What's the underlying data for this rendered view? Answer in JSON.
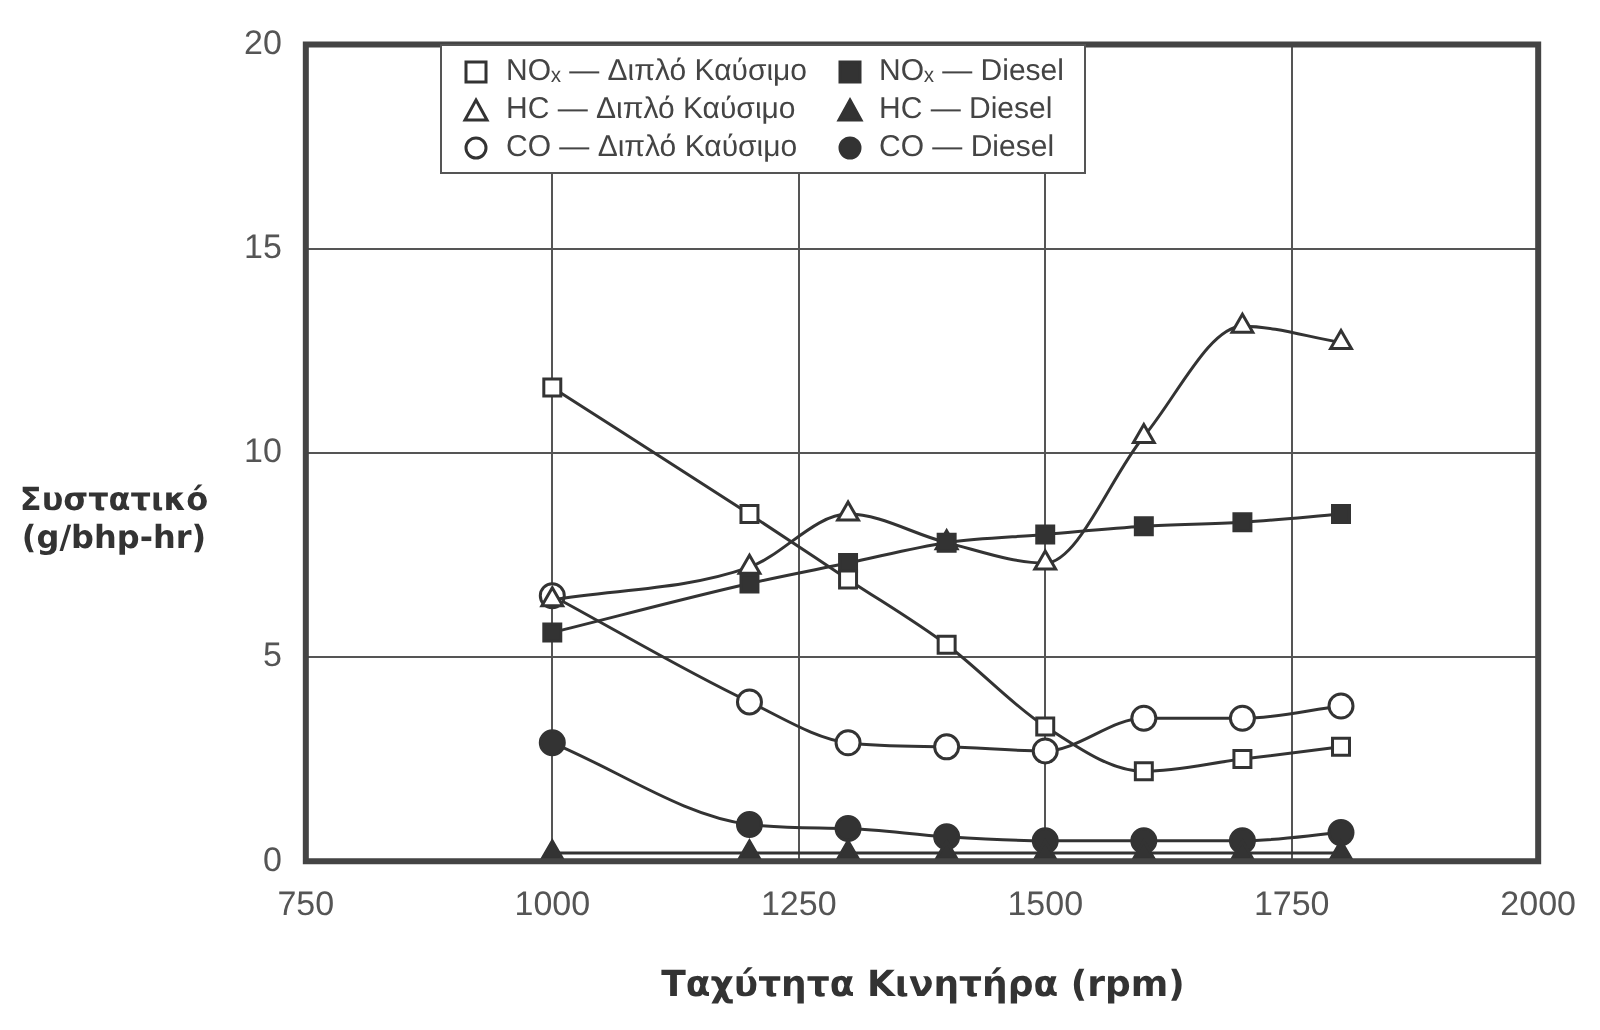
{
  "chart_data": {
    "type": "line",
    "xlabel": "Ταχύτητα Κινητήρα (rpm)",
    "ylabel": "Συστατικό\n(g/bhp-hr)",
    "x": [
      1000,
      1200,
      1300,
      1400,
      1500,
      1600,
      1700,
      1800
    ],
    "xlim": [
      750,
      2000
    ],
    "xticks": [
      750,
      1000,
      1250,
      1500,
      1750,
      2000
    ],
    "ylim": [
      0,
      20
    ],
    "yticks": [
      0,
      5,
      10,
      15,
      20
    ],
    "grid": true,
    "legend": "top",
    "line_style": "solid",
    "series": [
      {
        "name": "NOₓ — Διπλό Καύσιμο",
        "color": "#333333",
        "marker": "square",
        "values": [
          11.6,
          8.5,
          6.9,
          5.3,
          3.3,
          2.2,
          2.5,
          2.8
        ]
      },
      {
        "name": "NOₓ — Diesel",
        "color": "#333333",
        "marker": "square",
        "values": [
          5.6,
          6.8,
          7.3,
          7.8,
          8.0,
          8.2,
          8.3,
          8.5
        ]
      },
      {
        "name": "HC — Διπλό Καύσιμο",
        "color": "#333333",
        "marker": "triangle",
        "values": [
          6.4,
          7.2,
          8.5,
          7.8,
          7.3,
          10.4,
          13.1,
          12.7
        ]
      },
      {
        "name": "HC — Diesel",
        "color": "#333333",
        "marker": "triangle",
        "values": [
          0.2,
          0.2,
          0.2,
          0.2,
          0.2,
          0.2,
          0.2,
          0.2
        ]
      },
      {
        "name": "CO — Διπλό Καύσιμο",
        "color": "#333333",
        "marker": "circle",
        "values": [
          6.5,
          3.9,
          2.9,
          2.8,
          2.7,
          3.5,
          3.5,
          3.8
        ]
      },
      {
        "name": "CO — Diesel",
        "color": "#333333",
        "marker": "circle",
        "values": [
          2.9,
          0.9,
          0.8,
          0.6,
          0.5,
          0.5,
          0.5,
          0.7
        ]
      }
    ]
  }
}
